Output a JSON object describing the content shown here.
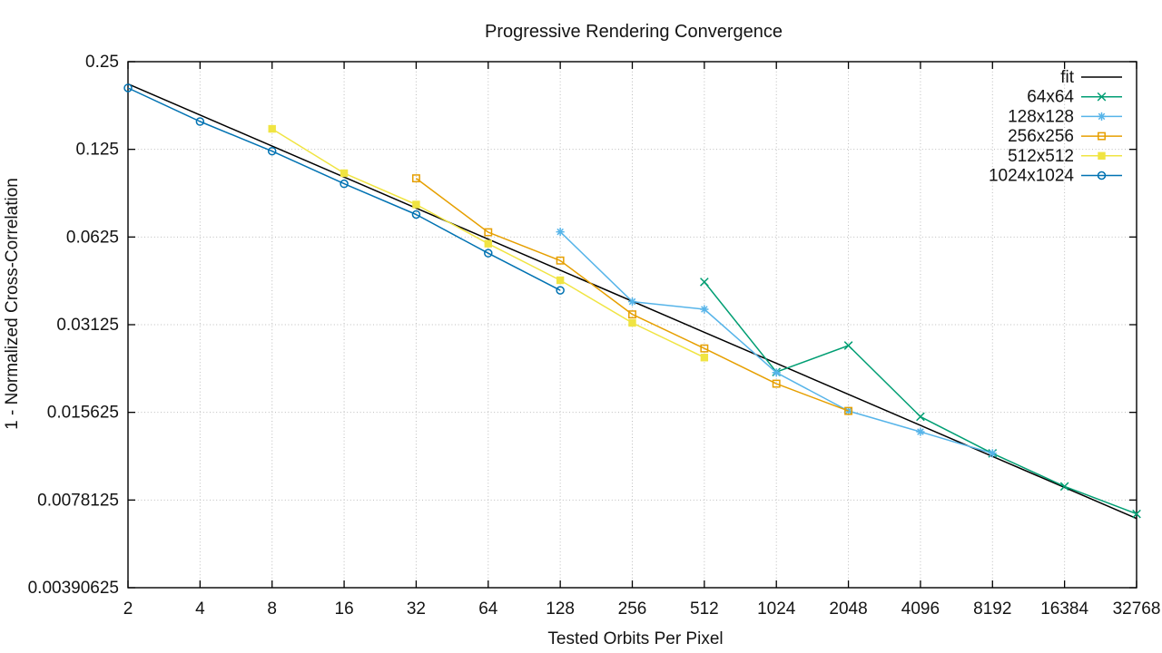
{
  "page": {
    "background": "#ffffff"
  },
  "chart_data": {
    "type": "line",
    "title": "Progressive Rendering Convergence",
    "xlabel": "Tested Orbits Per Pixel",
    "ylabel": "1 - Normalized Cross-Correlation",
    "x_scale": "log2",
    "y_scale": "log2",
    "xlim": [
      2,
      32768
    ],
    "ylim": [
      0.00390625,
      0.25
    ],
    "x_ticks": [
      2,
      4,
      8,
      16,
      32,
      64,
      128,
      256,
      512,
      1024,
      2048,
      4096,
      8192,
      16384,
      32768
    ],
    "x_tick_labels": [
      "2",
      "4",
      "8",
      "16",
      "32",
      "64",
      "128",
      "256",
      "512",
      "1024",
      "2048",
      "4096",
      "8192",
      "16384",
      "32768"
    ],
    "y_ticks": [
      0.25,
      0.125,
      0.0625,
      0.03125,
      0.015625,
      0.0078125,
      0.00390625
    ],
    "y_tick_labels": [
      "0.25",
      "0.125",
      "0.0625",
      "0.03125",
      "0.015625",
      "0.0078125",
      "0.00390625"
    ],
    "grid": true,
    "grid_color": "#bcbcbc",
    "border_color": "#000000",
    "text_color": "#141414",
    "legend_position": "top-right-inside",
    "series": [
      {
        "name": "fit",
        "color": "#000000",
        "marker": "none",
        "points": [
          [
            2,
            0.2095
          ],
          [
            32768,
            0.00675
          ]
        ]
      },
      {
        "name": "64x64",
        "color": "#009e73",
        "marker": "cross",
        "points": [
          [
            512,
            0.0438
          ],
          [
            1024,
            0.0215
          ],
          [
            2048,
            0.0265
          ],
          [
            4096,
            0.0151
          ],
          [
            8192,
            0.0113
          ],
          [
            16384,
            0.0087
          ],
          [
            32768,
            0.007
          ]
        ]
      },
      {
        "name": "128x128",
        "color": "#56b4e9",
        "marker": "asterisk",
        "points": [
          [
            128,
            0.0651
          ],
          [
            256,
            0.0375
          ],
          [
            512,
            0.0353
          ],
          [
            1024,
            0.0214
          ],
          [
            2048,
            0.0158
          ],
          [
            4096,
            0.0134
          ],
          [
            8192,
            0.0113
          ]
        ]
      },
      {
        "name": "256x256",
        "color": "#e69f00",
        "marker": "square-open",
        "points": [
          [
            32,
            0.0994
          ],
          [
            64,
            0.0649
          ],
          [
            128,
            0.0519
          ],
          [
            256,
            0.0339
          ],
          [
            512,
            0.0259
          ],
          [
            1024,
            0.0196
          ],
          [
            2048,
            0.0158
          ]
        ]
      },
      {
        "name": "512x512",
        "color": "#f0e442",
        "marker": "square-filled",
        "points": [
          [
            8,
            0.147
          ],
          [
            16,
            0.1035
          ],
          [
            32,
            0.0808
          ],
          [
            64,
            0.0593
          ],
          [
            128,
            0.0444
          ],
          [
            256,
            0.0317
          ],
          [
            512,
            0.0241
          ]
        ]
      },
      {
        "name": "1024x1024",
        "color": "#0072b2",
        "marker": "circle-open",
        "points": [
          [
            2,
            0.2031
          ],
          [
            4,
            0.1557
          ],
          [
            8,
            0.1232
          ],
          [
            16,
            0.0952
          ],
          [
            32,
            0.0747
          ],
          [
            64,
            0.055
          ],
          [
            128,
            0.041
          ]
        ]
      }
    ]
  }
}
